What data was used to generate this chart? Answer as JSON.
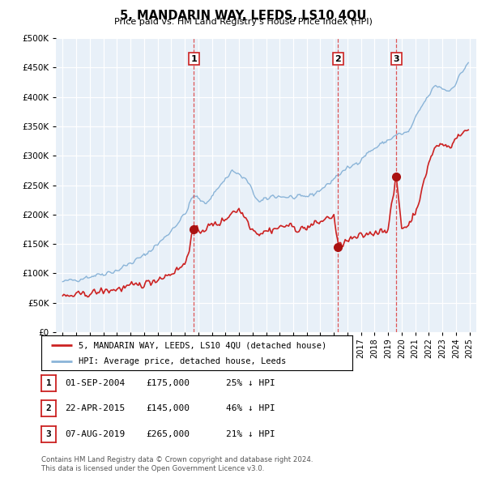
{
  "title": "5, MANDARIN WAY, LEEDS, LS10 4QU",
  "subtitle": "Price paid vs. HM Land Registry's House Price Index (HPI)",
  "legend_line1": "5, MANDARIN WAY, LEEDS, LS10 4QU (detached house)",
  "legend_line2": "HPI: Average price, detached house, Leeds",
  "footer_line1": "Contains HM Land Registry data © Crown copyright and database right 2024.",
  "footer_line2": "This data is licensed under the Open Government Licence v3.0.",
  "transactions": [
    {
      "label": "1",
      "date": "01-SEP-2004",
      "price": 175000,
      "pct": "25%",
      "x": 2004.667
    },
    {
      "label": "2",
      "date": "22-APR-2015",
      "price": 145000,
      "pct": "46%",
      "x": 2015.31
    },
    {
      "label": "3",
      "date": "07-AUG-2019",
      "price": 265000,
      "pct": "21%",
      "x": 2019.6
    }
  ],
  "hpi_color": "#8ab4d8",
  "price_color": "#cc2222",
  "marker_color": "#aa1111",
  "vline_color": "#dd4444",
  "background_color": "#e8f0f8",
  "ylim": [
    0,
    500000
  ],
  "yticks": [
    0,
    50000,
    100000,
    150000,
    200000,
    250000,
    300000,
    350000,
    400000,
    450000,
    500000
  ],
  "xlim": [
    1994.5,
    2025.5
  ],
  "xticks": [
    1995,
    1996,
    1997,
    1998,
    1999,
    2000,
    2001,
    2002,
    2003,
    2004,
    2005,
    2006,
    2007,
    2008,
    2009,
    2010,
    2011,
    2012,
    2013,
    2014,
    2015,
    2016,
    2017,
    2018,
    2019,
    2020,
    2021,
    2022,
    2023,
    2024,
    2025
  ]
}
